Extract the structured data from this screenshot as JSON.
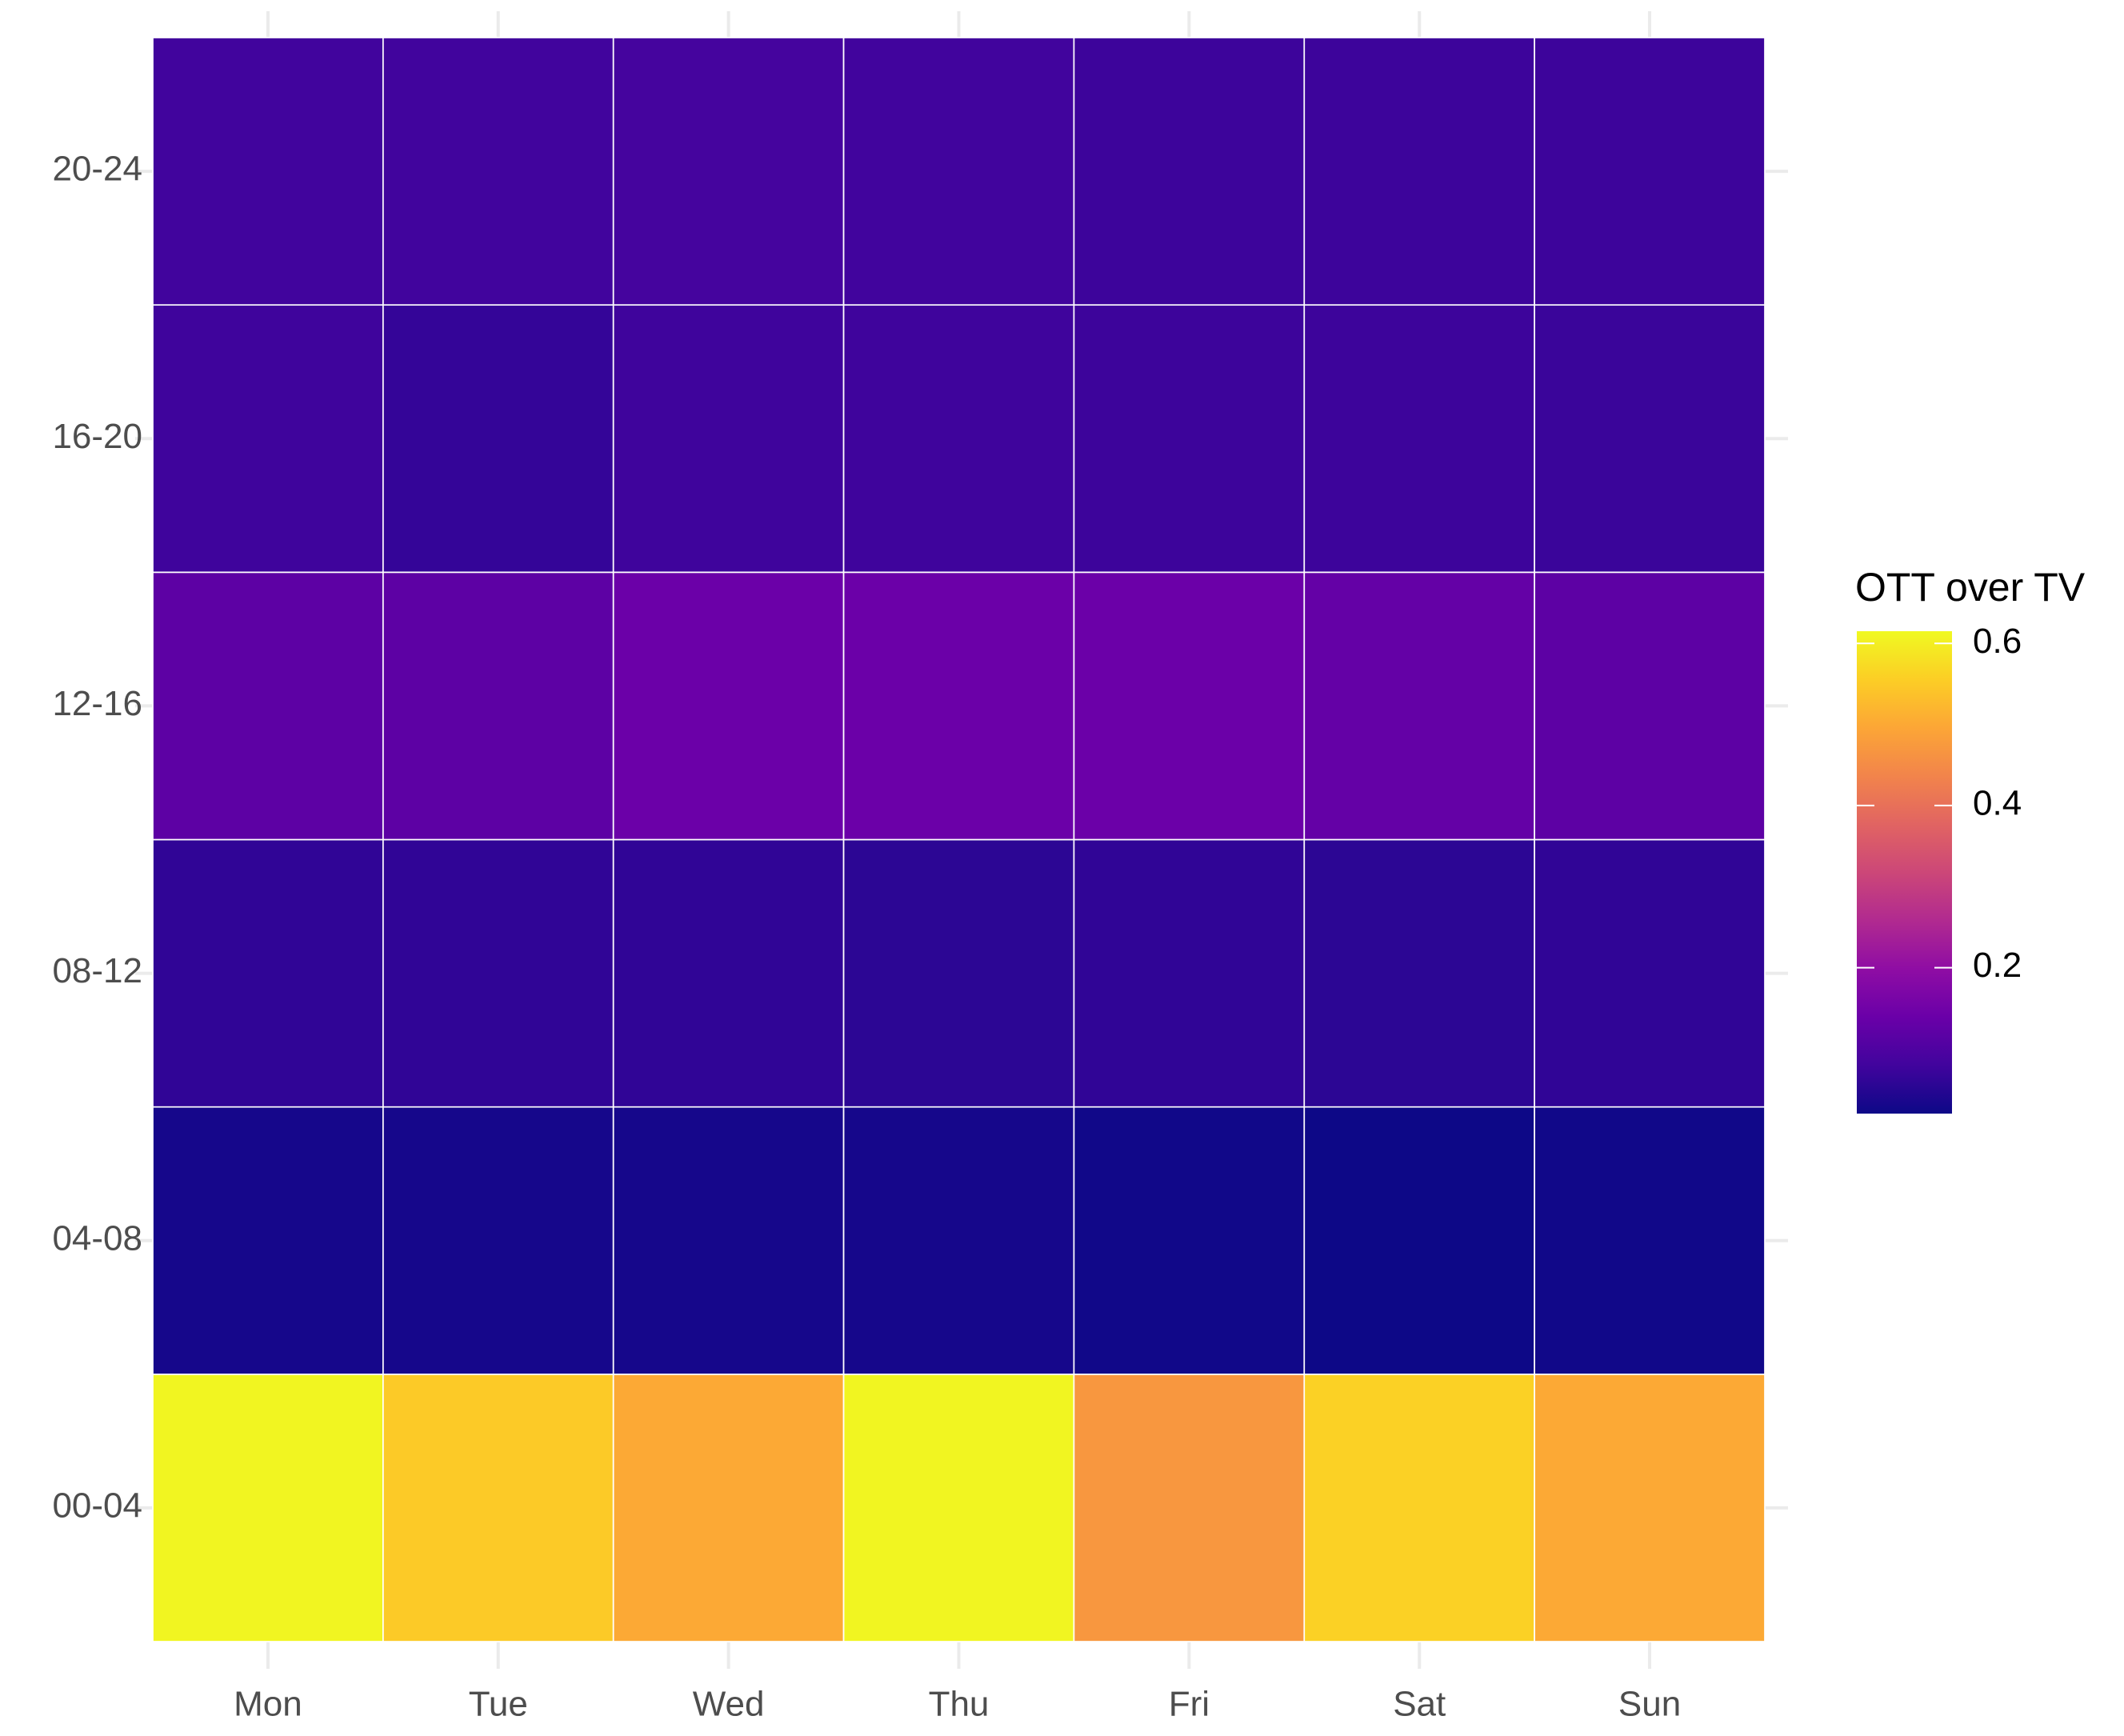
{
  "chart_data": {
    "type": "heatmap",
    "x_categories": [
      "Mon",
      "Tue",
      "Wed",
      "Thu",
      "Fri",
      "Sat",
      "Sun"
    ],
    "y_categories": [
      "00-04",
      "04-08",
      "08-12",
      "12-16",
      "16-20",
      "20-24"
    ],
    "values": [
      [
        0.61,
        0.55,
        0.5,
        0.61,
        0.47,
        0.56,
        0.5
      ],
      [
        0.03,
        0.03,
        0.03,
        0.03,
        0.025,
        0.02,
        0.025
      ],
      [
        0.06,
        0.06,
        0.06,
        0.055,
        0.06,
        0.055,
        0.06
      ],
      [
        0.12,
        0.12,
        0.14,
        0.14,
        0.14,
        0.13,
        0.12
      ],
      [
        0.077,
        0.065,
        0.077,
        0.077,
        0.075,
        0.075,
        0.072
      ],
      [
        0.08,
        0.08,
        0.085,
        0.08,
        0.075,
        0.075,
        0.075
      ]
    ],
    "legend_title": "OTT over TV",
    "clim": [
      0.02,
      0.615
    ],
    "cticks": [
      0.2,
      0.4,
      0.6
    ],
    "colorscale": [
      "#0d0887",
      "#41049d",
      "#6a00a8",
      "#8f0da4",
      "#b12a90",
      "#cc4778",
      "#e16462",
      "#f2844b",
      "#fca636",
      "#fcce25",
      "#f0f921"
    ],
    "grid": true
  }
}
